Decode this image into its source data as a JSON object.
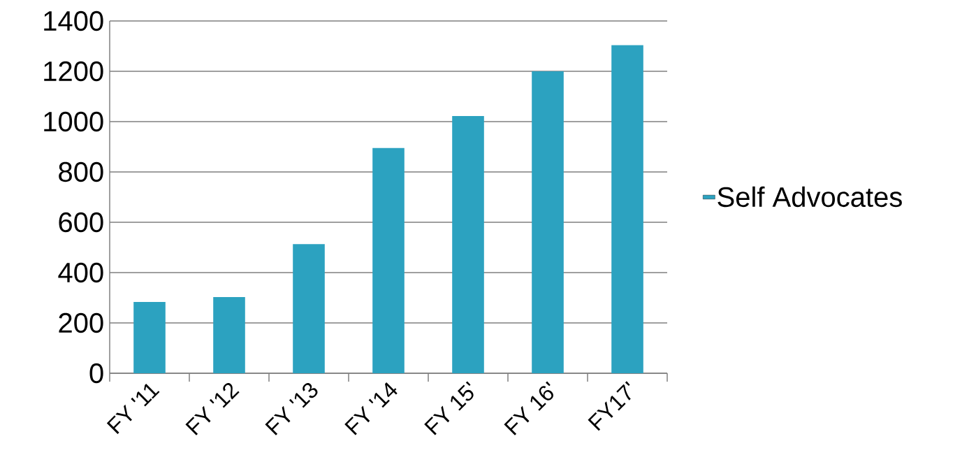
{
  "chart_data": {
    "type": "bar",
    "categories": [
      "FY '11",
      "FY '12",
      "FY '13",
      "FY '14",
      "FY 15'",
      "FY 16'",
      "FY17'"
    ],
    "series": [
      {
        "name": "Self Advocates",
        "color": "#2ca2c0",
        "values": [
          283,
          303,
          513,
          895,
          1022,
          1200,
          1304
        ]
      }
    ],
    "ylim": [
      0,
      1400
    ],
    "yticks": [
      0,
      200,
      400,
      600,
      800,
      1000,
      1200,
      1400
    ],
    "grid": "y",
    "legend": "right"
  }
}
